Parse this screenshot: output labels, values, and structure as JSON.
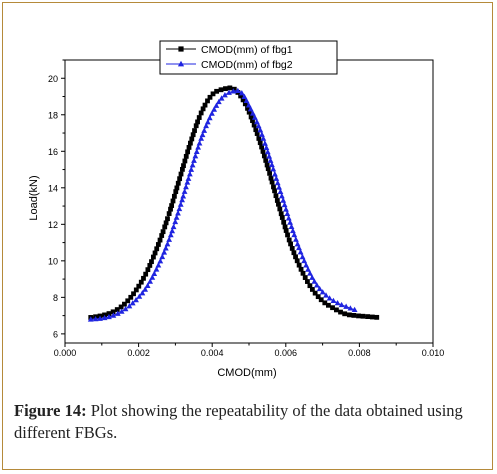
{
  "chart_data": {
    "type": "line",
    "xlabel": "CMOD(mm)",
    "ylabel": "Load(kN)",
    "xlim": [
      0.0,
      0.01
    ],
    "ylim": [
      5.5,
      21.0
    ],
    "xticks": [
      "0.000",
      "0.002",
      "0.004",
      "0.006",
      "0.008",
      "0.010"
    ],
    "yticks": [
      "6",
      "8",
      "10",
      "12",
      "14",
      "16",
      "18",
      "20"
    ],
    "legend_position": "top-center",
    "series": [
      {
        "name": "CMOD(mm)  of fbg1",
        "marker": "square",
        "color": "#000000",
        "x": [
          0.0007,
          0.001,
          0.0013,
          0.0016,
          0.0019,
          0.0022,
          0.0025,
          0.0028,
          0.0031,
          0.0034,
          0.0037,
          0.004,
          0.0043,
          0.0046,
          0.0049,
          0.0052,
          0.0055,
          0.0058,
          0.0061,
          0.0064,
          0.0067,
          0.007,
          0.0073,
          0.0076,
          0.0079,
          0.0082,
          0.0085
        ],
        "y": [
          6.9,
          7.0,
          7.2,
          7.6,
          8.3,
          9.3,
          10.7,
          12.4,
          14.4,
          16.4,
          18.1,
          19.1,
          19.4,
          19.4,
          18.6,
          17.1,
          15.2,
          13.1,
          11.1,
          9.6,
          8.5,
          7.8,
          7.4,
          7.1,
          7.0,
          6.95,
          6.9
        ]
      },
      {
        "name": "CMOD(mm) of fbg2",
        "marker": "triangle",
        "color": "#1f24e0",
        "x": [
          0.0007,
          0.001,
          0.0013,
          0.0016,
          0.0019,
          0.0022,
          0.0025,
          0.0028,
          0.0031,
          0.0034,
          0.0037,
          0.004,
          0.0043,
          0.0046,
          0.0048,
          0.005,
          0.0053,
          0.0056,
          0.0059,
          0.0062,
          0.0065,
          0.0068,
          0.0071,
          0.0074,
          0.0077,
          0.0079
        ],
        "y": [
          6.8,
          6.85,
          7.0,
          7.3,
          7.8,
          8.5,
          9.6,
          11.0,
          12.8,
          14.8,
          16.7,
          18.1,
          19.0,
          19.3,
          19.2,
          18.5,
          17.2,
          15.4,
          13.5,
          11.6,
          10.0,
          8.8,
          8.1,
          7.7,
          7.45,
          7.3
        ]
      }
    ]
  },
  "caption": {
    "label": "Figure 14:",
    "text": " Plot showing the repeatability of the data obtained using different FBGs."
  }
}
